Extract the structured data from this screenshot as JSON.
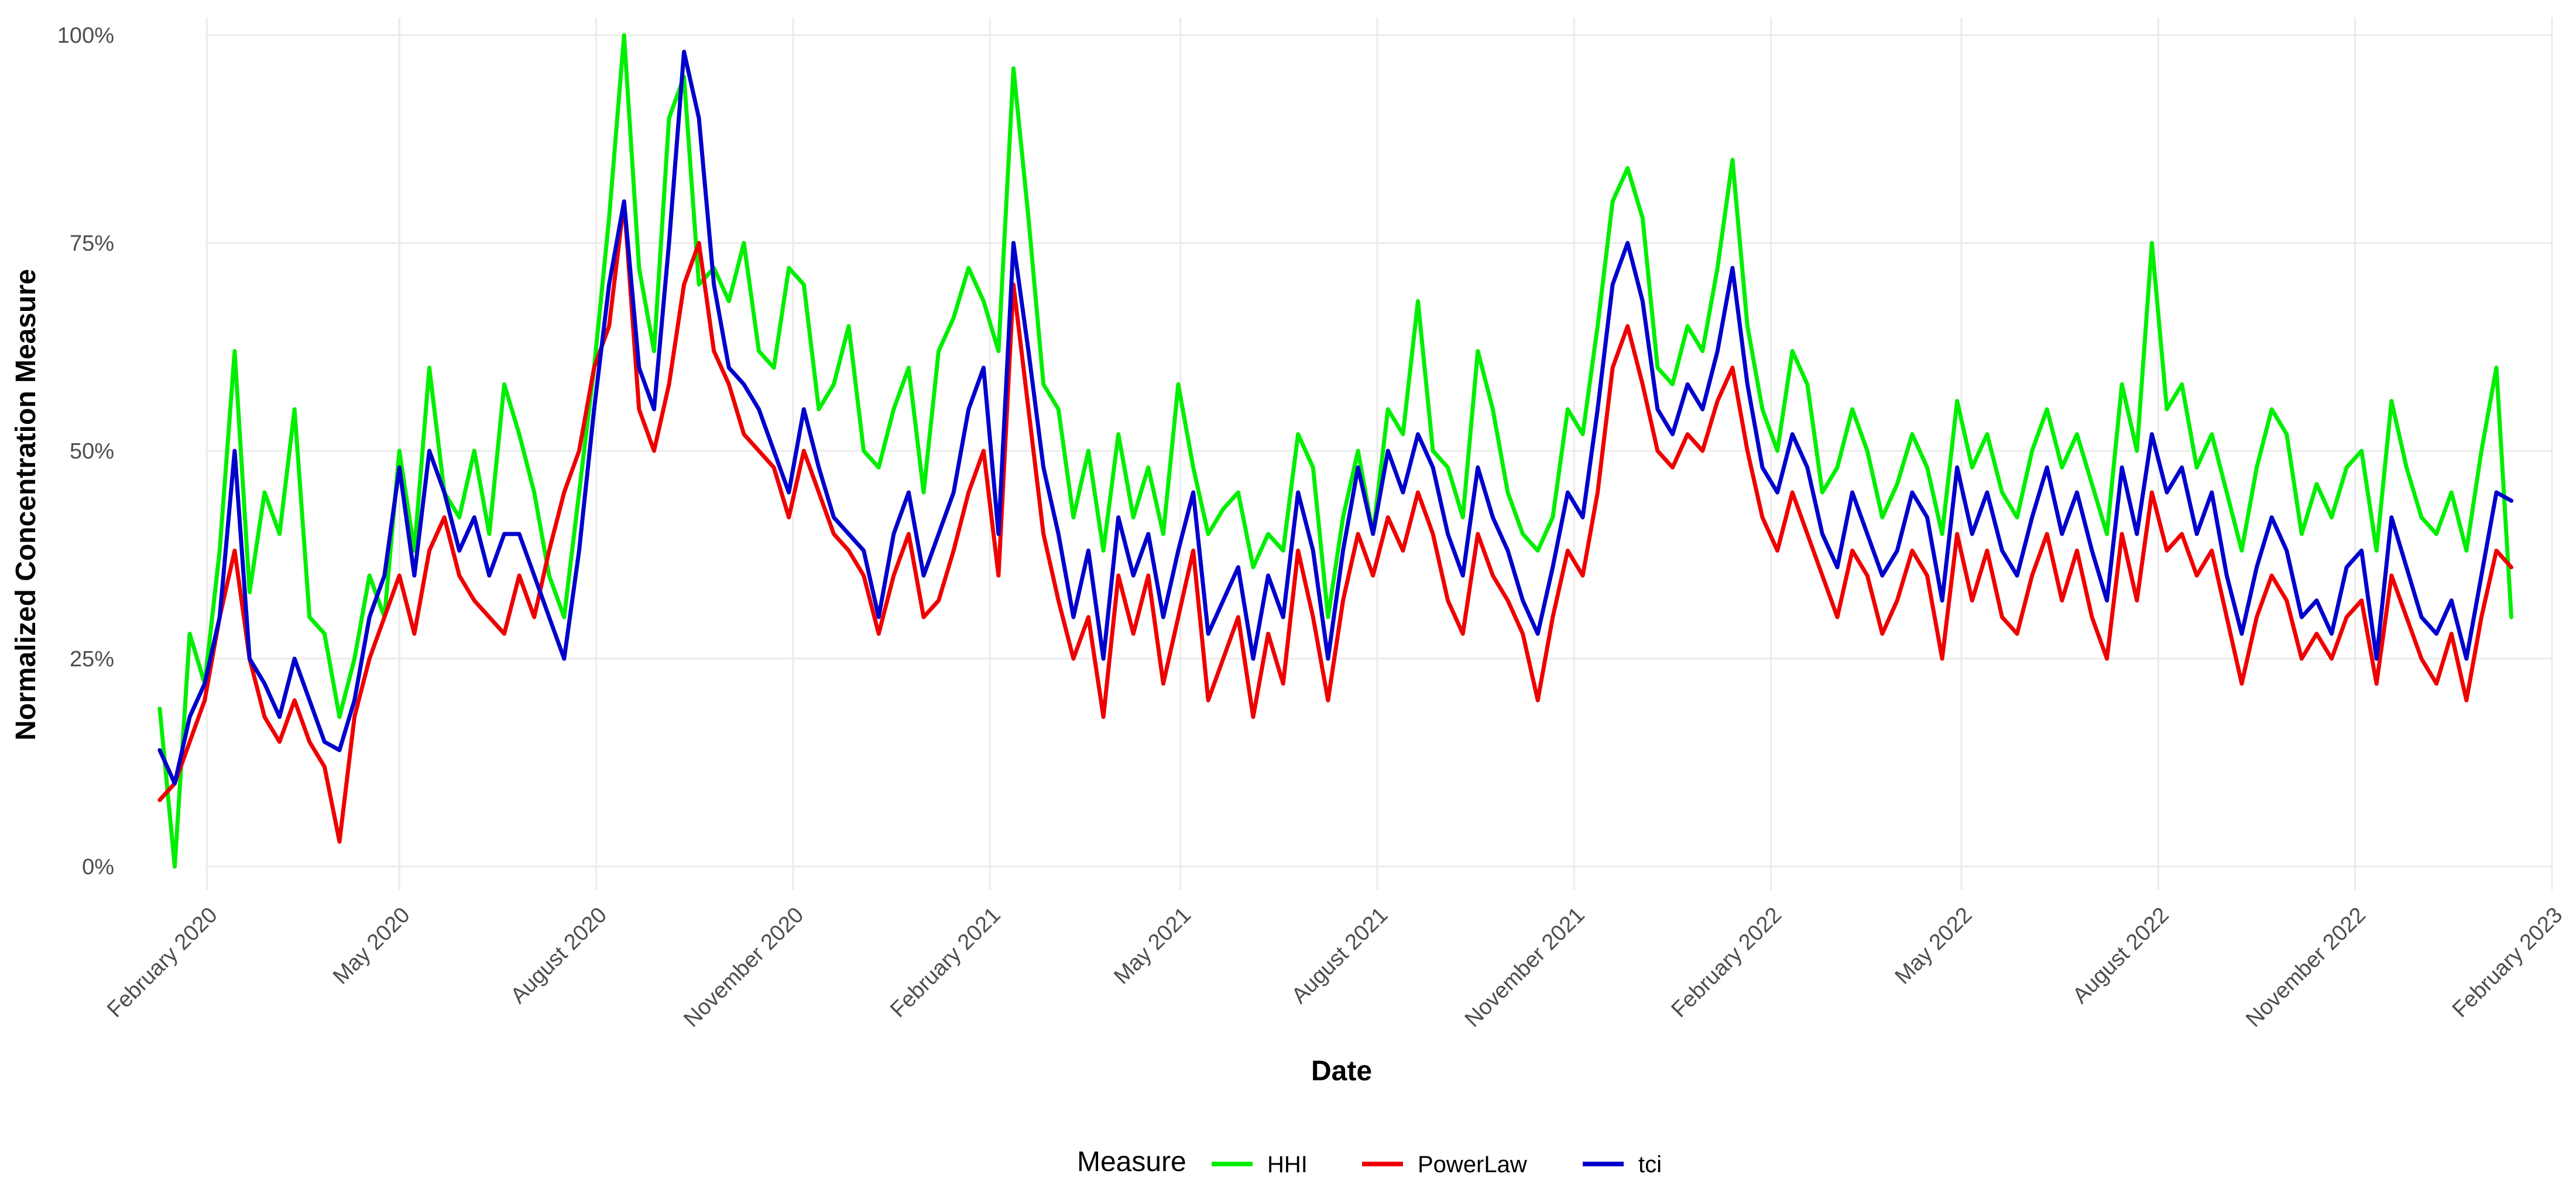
{
  "chart_data": {
    "type": "line",
    "title": "",
    "xlabel": "Date",
    "ylabel": "Normalized Concentration Measure",
    "ylim": [
      0,
      100
    ],
    "y_ticks": [
      {
        "value": 0,
        "label": "0%"
      },
      {
        "value": 25,
        "label": "25%"
      },
      {
        "value": 50,
        "label": "50%"
      },
      {
        "value": 75,
        "label": "75%"
      },
      {
        "value": 100,
        "label": "100%"
      }
    ],
    "x_range": [
      "2020-01-01",
      "2023-02-01"
    ],
    "x_ticks": [
      {
        "date": "2020-02-01",
        "label": "February 2020"
      },
      {
        "date": "2020-05-01",
        "label": "May 2020"
      },
      {
        "date": "2020-08-01",
        "label": "August 2020"
      },
      {
        "date": "2020-11-01",
        "label": "November 2020"
      },
      {
        "date": "2021-02-01",
        "label": "February 2021"
      },
      {
        "date": "2021-05-01",
        "label": "May 2021"
      },
      {
        "date": "2021-08-01",
        "label": "August 2021"
      },
      {
        "date": "2021-11-01",
        "label": "November 2021"
      },
      {
        "date": "2022-02-01",
        "label": "February 2022"
      },
      {
        "date": "2022-05-01",
        "label": "May 2022"
      },
      {
        "date": "2022-08-01",
        "label": "August 2022"
      },
      {
        "date": "2022-11-01",
        "label": "November 2022"
      },
      {
        "date": "2023-02-01",
        "label": "February 2023"
      }
    ],
    "legend": {
      "title": "Measure",
      "position": "bottom"
    },
    "x_dates": [
      "2020-01-10",
      "2020-01-17",
      "2020-01-24",
      "2020-01-31",
      "2020-02-07",
      "2020-02-14",
      "2020-02-21",
      "2020-02-28",
      "2020-03-06",
      "2020-03-13",
      "2020-03-20",
      "2020-03-27",
      "2020-04-03",
      "2020-04-10",
      "2020-04-17",
      "2020-04-24",
      "2020-05-01",
      "2020-05-08",
      "2020-05-15",
      "2020-05-22",
      "2020-05-29",
      "2020-06-05",
      "2020-06-12",
      "2020-06-19",
      "2020-06-26",
      "2020-07-03",
      "2020-07-10",
      "2020-07-17",
      "2020-07-24",
      "2020-07-31",
      "2020-08-07",
      "2020-08-14",
      "2020-08-21",
      "2020-08-28",
      "2020-09-04",
      "2020-09-11",
      "2020-09-18",
      "2020-09-25",
      "2020-10-02",
      "2020-10-09",
      "2020-10-16",
      "2020-10-23",
      "2020-10-30",
      "2020-11-06",
      "2020-11-13",
      "2020-11-20",
      "2020-11-27",
      "2020-12-04",
      "2020-12-11",
      "2020-12-18",
      "2020-12-25",
      "2021-01-01",
      "2021-01-08",
      "2021-01-15",
      "2021-01-22",
      "2021-01-29",
      "2021-02-05",
      "2021-02-12",
      "2021-02-19",
      "2021-02-26",
      "2021-03-05",
      "2021-03-12",
      "2021-03-19",
      "2021-03-26",
      "2021-04-02",
      "2021-04-09",
      "2021-04-16",
      "2021-04-23",
      "2021-04-30",
      "2021-05-07",
      "2021-05-14",
      "2021-05-21",
      "2021-05-28",
      "2021-06-04",
      "2021-06-11",
      "2021-06-18",
      "2021-06-25",
      "2021-07-02",
      "2021-07-09",
      "2021-07-16",
      "2021-07-23",
      "2021-07-30",
      "2021-08-06",
      "2021-08-13",
      "2021-08-20",
      "2021-08-27",
      "2021-09-03",
      "2021-09-10",
      "2021-09-17",
      "2021-09-24",
      "2021-10-01",
      "2021-10-08",
      "2021-10-15",
      "2021-10-22",
      "2021-10-29",
      "2021-11-05",
      "2021-11-12",
      "2021-11-19",
      "2021-11-26",
      "2021-12-03",
      "2021-12-10",
      "2021-12-17",
      "2021-12-24",
      "2021-12-31",
      "2022-01-07",
      "2022-01-14",
      "2022-01-21",
      "2022-01-28",
      "2022-02-04",
      "2022-02-11",
      "2022-02-18",
      "2022-02-25",
      "2022-03-04",
      "2022-03-11",
      "2022-03-18",
      "2022-03-25",
      "2022-04-01",
      "2022-04-08",
      "2022-04-15",
      "2022-04-22",
      "2022-04-29",
      "2022-05-06",
      "2022-05-13",
      "2022-05-20",
      "2022-05-27",
      "2022-06-03",
      "2022-06-10",
      "2022-06-17",
      "2022-06-24",
      "2022-07-01",
      "2022-07-08",
      "2022-07-15",
      "2022-07-22",
      "2022-07-29",
      "2022-08-05",
      "2022-08-12",
      "2022-08-19",
      "2022-08-26",
      "2022-09-02",
      "2022-09-09",
      "2022-09-16",
      "2022-09-23",
      "2022-09-30",
      "2022-10-07",
      "2022-10-14",
      "2022-10-21",
      "2022-10-28",
      "2022-11-04",
      "2022-11-11",
      "2022-11-18",
      "2022-11-25",
      "2022-12-02",
      "2022-12-09",
      "2022-12-16",
      "2022-12-23",
      "2022-12-30",
      "2023-01-06",
      "2023-01-13"
    ],
    "series": [
      {
        "name": "HHI",
        "color": "#00ee00",
        "values": [
          19,
          0,
          28,
          22,
          38,
          62,
          33,
          45,
          40,
          55,
          30,
          28,
          18,
          25,
          35,
          30,
          50,
          38,
          60,
          45,
          42,
          50,
          40,
          58,
          52,
          45,
          35,
          30,
          45,
          60,
          78,
          100,
          72,
          62,
          90,
          95,
          70,
          72,
          68,
          75,
          62,
          60,
          72,
          70,
          55,
          58,
          65,
          50,
          48,
          55,
          60,
          45,
          62,
          66,
          72,
          68,
          62,
          96,
          78,
          58,
          55,
          42,
          50,
          38,
          52,
          42,
          48,
          40,
          58,
          48,
          40,
          43,
          45,
          36,
          40,
          38,
          52,
          48,
          30,
          42,
          50,
          40,
          55,
          52,
          68,
          50,
          48,
          42,
          62,
          55,
          45,
          40,
          38,
          42,
          55,
          52,
          65,
          80,
          84,
          78,
          60,
          58,
          65,
          62,
          72,
          85,
          65,
          55,
          50,
          62,
          58,
          45,
          48,
          55,
          50,
          42,
          46,
          52,
          48,
          40,
          56,
          48,
          52,
          45,
          42,
          50,
          55,
          48,
          52,
          46,
          40,
          58,
          50,
          75,
          55,
          58,
          48,
          52,
          45,
          38,
          48,
          55,
          52,
          40,
          46,
          42,
          48,
          50,
          38,
          56,
          48,
          42,
          40,
          45,
          38,
          50,
          60,
          30
        ]
      },
      {
        "name": "PowerLaw",
        "color": "#ee0000",
        "values": [
          8,
          10,
          15,
          20,
          30,
          38,
          25,
          18,
          15,
          20,
          15,
          12,
          3,
          18,
          25,
          30,
          35,
          28,
          38,
          42,
          35,
          32,
          30,
          28,
          35,
          30,
          38,
          45,
          50,
          60,
          65,
          80,
          55,
          50,
          58,
          70,
          75,
          62,
          58,
          52,
          50,
          48,
          42,
          50,
          45,
          40,
          38,
          35,
          28,
          35,
          40,
          30,
          32,
          38,
          45,
          50,
          35,
          70,
          55,
          40,
          32,
          25,
          30,
          18,
          35,
          28,
          35,
          22,
          30,
          38,
          20,
          25,
          30,
          18,
          28,
          22,
          38,
          30,
          20,
          32,
          40,
          35,
          42,
          38,
          45,
          40,
          32,
          28,
          40,
          35,
          32,
          28,
          20,
          30,
          38,
          35,
          45,
          60,
          65,
          58,
          50,
          48,
          52,
          50,
          56,
          60,
          50,
          42,
          38,
          45,
          40,
          35,
          30,
          38,
          35,
          28,
          32,
          38,
          35,
          25,
          40,
          32,
          38,
          30,
          28,
          35,
          40,
          32,
          38,
          30,
          25,
          40,
          32,
          45,
          38,
          40,
          35,
          38,
          30,
          22,
          30,
          35,
          32,
          25,
          28,
          25,
          30,
          32,
          22,
          35,
          30,
          25,
          22,
          28,
          20,
          30,
          38,
          36
        ]
      },
      {
        "name": "tci",
        "color": "#0000cc",
        "values": [
          14,
          10,
          18,
          22,
          30,
          50,
          25,
          22,
          18,
          25,
          20,
          15,
          14,
          20,
          30,
          35,
          48,
          35,
          50,
          45,
          38,
          42,
          35,
          40,
          40,
          35,
          30,
          25,
          38,
          55,
          70,
          80,
          60,
          55,
          75,
          98,
          90,
          70,
          60,
          58,
          55,
          50,
          45,
          55,
          48,
          42,
          40,
          38,
          30,
          40,
          45,
          35,
          40,
          45,
          55,
          60,
          40,
          75,
          62,
          48,
          40,
          30,
          38,
          25,
          42,
          35,
          40,
          30,
          38,
          45,
          28,
          32,
          36,
          25,
          35,
          30,
          45,
          38,
          25,
          38,
          48,
          40,
          50,
          45,
          52,
          48,
          40,
          35,
          48,
          42,
          38,
          32,
          28,
          36,
          45,
          42,
          55,
          70,
          75,
          68,
          55,
          52,
          58,
          55,
          62,
          72,
          58,
          48,
          45,
          52,
          48,
          40,
          36,
          45,
          40,
          35,
          38,
          45,
          42,
          32,
          48,
          40,
          45,
          38,
          35,
          42,
          48,
          40,
          45,
          38,
          32,
          48,
          40,
          52,
          45,
          48,
          40,
          45,
          35,
          28,
          36,
          42,
          38,
          30,
          32,
          28,
          36,
          38,
          25,
          42,
          36,
          30,
          28,
          32,
          25,
          35,
          45,
          44
        ]
      }
    ]
  }
}
